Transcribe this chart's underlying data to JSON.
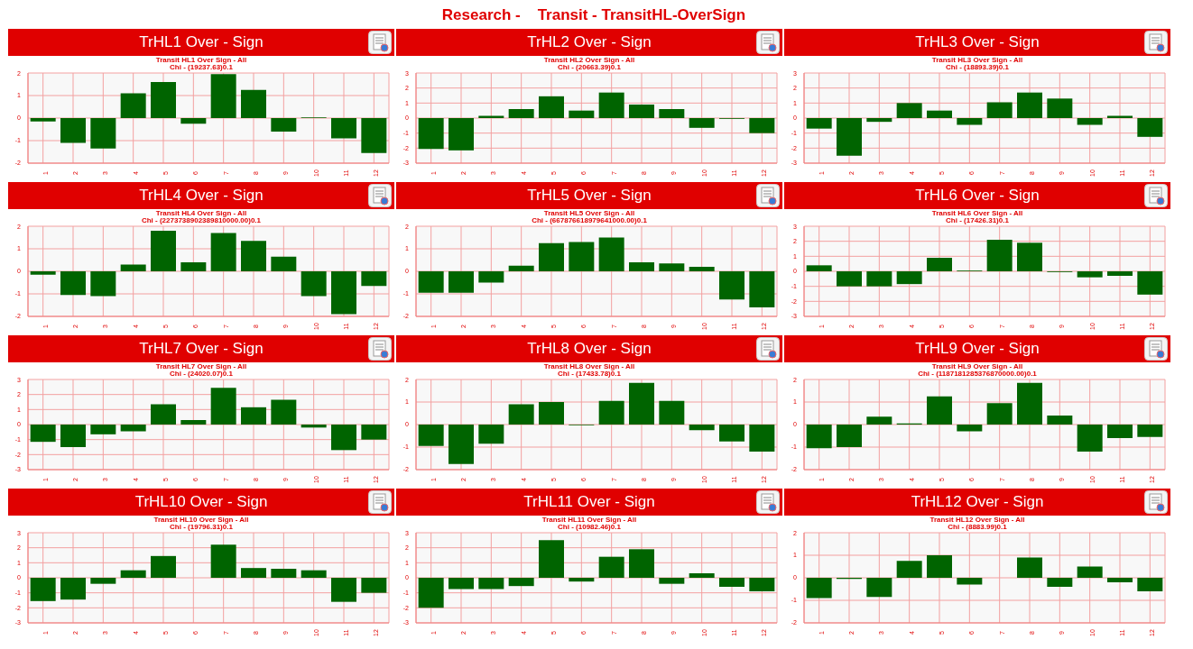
{
  "chart_data": [
    {
      "type": "bar",
      "title": "TrHL1 Over - Sign",
      "subtitle": "Transit HL1 Over Sign - All",
      "annotations": [
        "Research -    Transit - TransitHL-OverSign",
        "Chi - (19237.63)0.1"
      ],
      "categories": [
        "1",
        "2",
        "3",
        "4",
        "5",
        "6",
        "7",
        "8",
        "9",
        "10",
        "11",
        "12"
      ],
      "values": [
        -0.15,
        -1.1,
        -1.35,
        1.1,
        1.6,
        -0.25,
        1.95,
        1.25,
        -0.6,
        0.03,
        -0.9,
        -1.55
      ],
      "color": "#006400",
      "ylim": [
        -2,
        2
      ],
      "yticks": [
        -2,
        -1,
        0,
        1,
        2
      ],
      "grid": true
    },
    {
      "type": "bar",
      "title": "TrHL2 Over - Sign",
      "subtitle": "Transit HL2 Over Sign - All",
      "annotations": [
        "Chi - (20663.39)0.1"
      ],
      "categories": [
        "1",
        "2",
        "3",
        "4",
        "5",
        "6",
        "7",
        "8",
        "9",
        "10",
        "11",
        "12"
      ],
      "values": [
        -2.05,
        -2.15,
        0.15,
        0.6,
        1.45,
        0.5,
        1.7,
        0.9,
        0.6,
        -0.65,
        -0.05,
        -1.0
      ],
      "color": "#006400",
      "ylim": [
        -3,
        3
      ],
      "yticks": [
        -3,
        -2,
        -1,
        0,
        1,
        2,
        3
      ],
      "grid": true
    },
    {
      "type": "bar",
      "title": "TrHL3 Over - Sign",
      "subtitle": "Transit HL3 Over Sign - All",
      "annotations": [
        "Chi - (18893.39)0.1"
      ],
      "categories": [
        "1",
        "2",
        "3",
        "4",
        "5",
        "6",
        "7",
        "8",
        "9",
        "10",
        "11",
        "12"
      ],
      "values": [
        -0.7,
        -2.5,
        -0.25,
        1.0,
        0.5,
        -0.45,
        1.05,
        1.7,
        1.3,
        -0.45,
        0.15,
        -1.25
      ],
      "color": "#006400",
      "ylim": [
        -3,
        3
      ],
      "yticks": [
        -3,
        -2,
        -1,
        0,
        1,
        2,
        3
      ],
      "grid": true
    },
    {
      "type": "bar",
      "title": "TrHL4 Over - Sign",
      "subtitle": "Transit HL4 Over Sign - All",
      "annotations": [
        "Chi - (2273738902389810000.00)0.1"
      ],
      "categories": [
        "1",
        "2",
        "3",
        "4",
        "5",
        "6",
        "7",
        "8",
        "9",
        "10",
        "11",
        "12"
      ],
      "values": [
        -0.15,
        -1.05,
        -1.1,
        0.3,
        1.8,
        0.4,
        1.7,
        1.35,
        0.65,
        -1.1,
        -1.9,
        -0.65
      ],
      "color": "#006400",
      "ylim": [
        -2,
        2
      ],
      "yticks": [
        -2,
        -1,
        0,
        1,
        2
      ],
      "grid": true
    },
    {
      "type": "bar",
      "title": "TrHL5 Over - Sign",
      "subtitle": "Transit HL5 Over Sign - All",
      "annotations": [
        "Chi - (667876618979641000.00)0.1"
      ],
      "categories": [
        "1",
        "2",
        "3",
        "4",
        "5",
        "6",
        "7",
        "8",
        "9",
        "10",
        "11",
        "12"
      ],
      "values": [
        -0.95,
        -0.95,
        -0.5,
        0.25,
        1.25,
        1.3,
        1.5,
        0.4,
        0.35,
        0.2,
        -1.25,
        -1.6
      ],
      "color": "#006400",
      "ylim": [
        -2,
        2
      ],
      "yticks": [
        -2,
        -1,
        0,
        1,
        2
      ],
      "grid": true
    },
    {
      "type": "bar",
      "title": "TrHL6 Over - Sign",
      "subtitle": "Transit HL6 Over Sign - All",
      "annotations": [
        "Chi - (17426.31)0.1"
      ],
      "categories": [
        "1",
        "2",
        "3",
        "4",
        "5",
        "6",
        "7",
        "8",
        "9",
        "10",
        "11",
        "12"
      ],
      "values": [
        0.4,
        -1.0,
        -1.0,
        -0.85,
        0.9,
        0.05,
        2.1,
        1.9,
        -0.05,
        -0.4,
        -0.3,
        -1.55
      ],
      "color": "#006400",
      "ylim": [
        -3,
        3
      ],
      "yticks": [
        -3,
        -2,
        -1,
        0,
        1,
        2,
        3
      ],
      "grid": true
    },
    {
      "type": "bar",
      "title": "TrHL7 Over - Sign",
      "subtitle": "Transit HL7 Over Sign - All",
      "annotations": [
        "Chi - (24020.07)0.1"
      ],
      "categories": [
        "1",
        "2",
        "3",
        "4",
        "5",
        "6",
        "7",
        "8",
        "9",
        "10",
        "11",
        "12"
      ],
      "values": [
        -1.15,
        -1.5,
        -0.65,
        -0.45,
        1.35,
        0.3,
        2.45,
        1.15,
        1.65,
        -0.2,
        -1.7,
        -1.0
      ],
      "color": "#006400",
      "ylim": [
        -3,
        3
      ],
      "yticks": [
        -3,
        -2,
        -1,
        0,
        1,
        2,
        3
      ],
      "grid": true
    },
    {
      "type": "bar",
      "title": "TrHL8 Over - Sign",
      "subtitle": "Transit HL8 Over Sign - All",
      "annotations": [
        "Chi - (17433.78)0.1"
      ],
      "categories": [
        "1",
        "2",
        "3",
        "4",
        "5",
        "6",
        "7",
        "8",
        "9",
        "10",
        "11",
        "12"
      ],
      "values": [
        -0.95,
        -1.75,
        -0.85,
        0.9,
        1.0,
        -0.03,
        1.05,
        1.85,
        1.05,
        -0.25,
        -0.75,
        -1.2
      ],
      "color": "#006400",
      "ylim": [
        -2,
        2
      ],
      "yticks": [
        -2,
        -1,
        0,
        1,
        2
      ],
      "grid": true
    },
    {
      "type": "bar",
      "title": "TrHL9 Over - Sign",
      "subtitle": "Transit HL9 Over Sign - All",
      "annotations": [
        "Chi - (1187181285376870000.00)0.1"
      ],
      "categories": [
        "1",
        "2",
        "3",
        "4",
        "5",
        "6",
        "7",
        "8",
        "9",
        "10",
        "11",
        "12"
      ],
      "values": [
        -1.05,
        -1.0,
        0.35,
        0.05,
        1.25,
        -0.3,
        0.95,
        1.85,
        0.4,
        -1.2,
        -0.6,
        -0.55
      ],
      "color": "#006400",
      "ylim": [
        -2,
        2
      ],
      "yticks": [
        -2,
        -1,
        0,
        1,
        2
      ],
      "grid": true
    },
    {
      "type": "bar",
      "title": "TrHL10 Over - Sign",
      "subtitle": "Transit HL10 Over Sign - All",
      "annotations": [
        "Chi - (19796.31)0.1"
      ],
      "categories": [
        "1",
        "2",
        "3",
        "4",
        "5",
        "6",
        "7",
        "8",
        "9",
        "10",
        "11",
        "12"
      ],
      "values": [
        -1.55,
        -1.45,
        -0.4,
        0.5,
        1.45,
        0,
        2.2,
        0.65,
        0.6,
        0.5,
        -1.6,
        -1.0
      ],
      "color": "#006400",
      "ylim": [
        -3,
        3
      ],
      "yticks": [
        -3,
        -2,
        -1,
        0,
        1,
        2,
        3
      ],
      "grid": true
    },
    {
      "type": "bar",
      "title": "TrHL11 Over - Sign",
      "subtitle": "Transit HL11 Over Sign - All",
      "annotations": [
        "Chi - (10982.46)0.1"
      ],
      "categories": [
        "1",
        "2",
        "3",
        "4",
        "5",
        "6",
        "7",
        "8",
        "9",
        "10",
        "11",
        "12"
      ],
      "values": [
        -2.0,
        -0.75,
        -0.75,
        -0.55,
        2.5,
        -0.25,
        1.4,
        1.9,
        -0.4,
        0.3,
        -0.6,
        -0.9
      ],
      "color": "#006400",
      "ylim": [
        -3,
        3
      ],
      "yticks": [
        -3,
        -2,
        -1,
        0,
        1,
        2,
        3
      ],
      "grid": true
    },
    {
      "type": "bar",
      "title": "TrHL12 Over - Sign",
      "subtitle": "Transit HL12 Over Sign - All",
      "annotations": [
        "Chi - (8883.99)0.1"
      ],
      "categories": [
        "1",
        "2",
        "3",
        "4",
        "5",
        "6",
        "7",
        "8",
        "9",
        "10",
        "11",
        "12"
      ],
      "values": [
        -0.9,
        -0.05,
        -0.85,
        0.75,
        1.0,
        -0.3,
        0,
        0.9,
        -0.4,
        0.5,
        -0.2,
        -0.6
      ],
      "color": "#006400",
      "ylim": [
        -2,
        2
      ],
      "yticks": [
        -2,
        -1,
        0,
        1,
        2
      ],
      "grid": true
    }
  ]
}
